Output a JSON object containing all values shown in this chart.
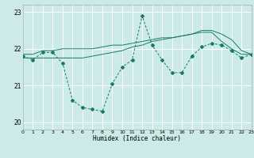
{
  "background_color": "#cceae7",
  "grid_color": "#ffffff",
  "line_color": "#1a7a6a",
  "xlabel": "Humidex (Indice chaleur)",
  "xlim": [
    0,
    23
  ],
  "ylim": [
    19.8,
    23.2
  ],
  "yticks": [
    20,
    21,
    22,
    23
  ],
  "xticks": [
    0,
    1,
    2,
    3,
    4,
    5,
    6,
    7,
    8,
    9,
    10,
    11,
    12,
    13,
    14,
    15,
    16,
    17,
    18,
    19,
    20,
    21,
    22,
    23
  ],
  "series1_x": [
    0,
    1,
    2,
    3,
    4,
    5,
    6,
    7,
    8,
    9,
    10,
    11,
    12,
    13,
    14,
    15,
    16,
    17,
    18,
    19,
    20,
    21,
    22,
    23
  ],
  "series1_y": [
    21.8,
    21.7,
    21.9,
    21.9,
    21.6,
    20.6,
    20.4,
    20.35,
    20.3,
    21.05,
    21.5,
    21.7,
    22.9,
    22.1,
    21.7,
    21.35,
    21.35,
    21.8,
    22.05,
    22.15,
    22.1,
    21.95,
    21.75,
    21.85
  ],
  "series2_x": [
    0,
    1,
    2,
    3,
    4,
    5,
    6,
    7,
    8,
    9,
    10,
    11,
    12,
    13,
    14,
    15,
    16,
    17,
    18,
    19,
    20,
    21,
    22,
    23
  ],
  "series2_y": [
    21.85,
    21.85,
    21.95,
    21.95,
    22.0,
    22.0,
    22.0,
    22.0,
    22.05,
    22.1,
    22.1,
    22.15,
    22.2,
    22.25,
    22.3,
    22.3,
    22.35,
    22.4,
    22.45,
    22.45,
    22.2,
    22.0,
    21.85,
    21.85
  ],
  "series3_x": [
    0,
    1,
    2,
    3,
    4,
    5,
    6,
    7,
    8,
    9,
    10,
    11,
    12,
    13,
    14,
    15,
    16,
    17,
    18,
    19,
    20,
    21,
    22,
    23
  ],
  "series3_y": [
    21.75,
    21.75,
    21.75,
    21.75,
    21.75,
    21.75,
    21.75,
    21.8,
    21.85,
    21.9,
    21.95,
    22.05,
    22.1,
    22.2,
    22.25,
    22.3,
    22.35,
    22.4,
    22.5,
    22.5,
    22.4,
    22.25,
    21.95,
    21.85
  ]
}
